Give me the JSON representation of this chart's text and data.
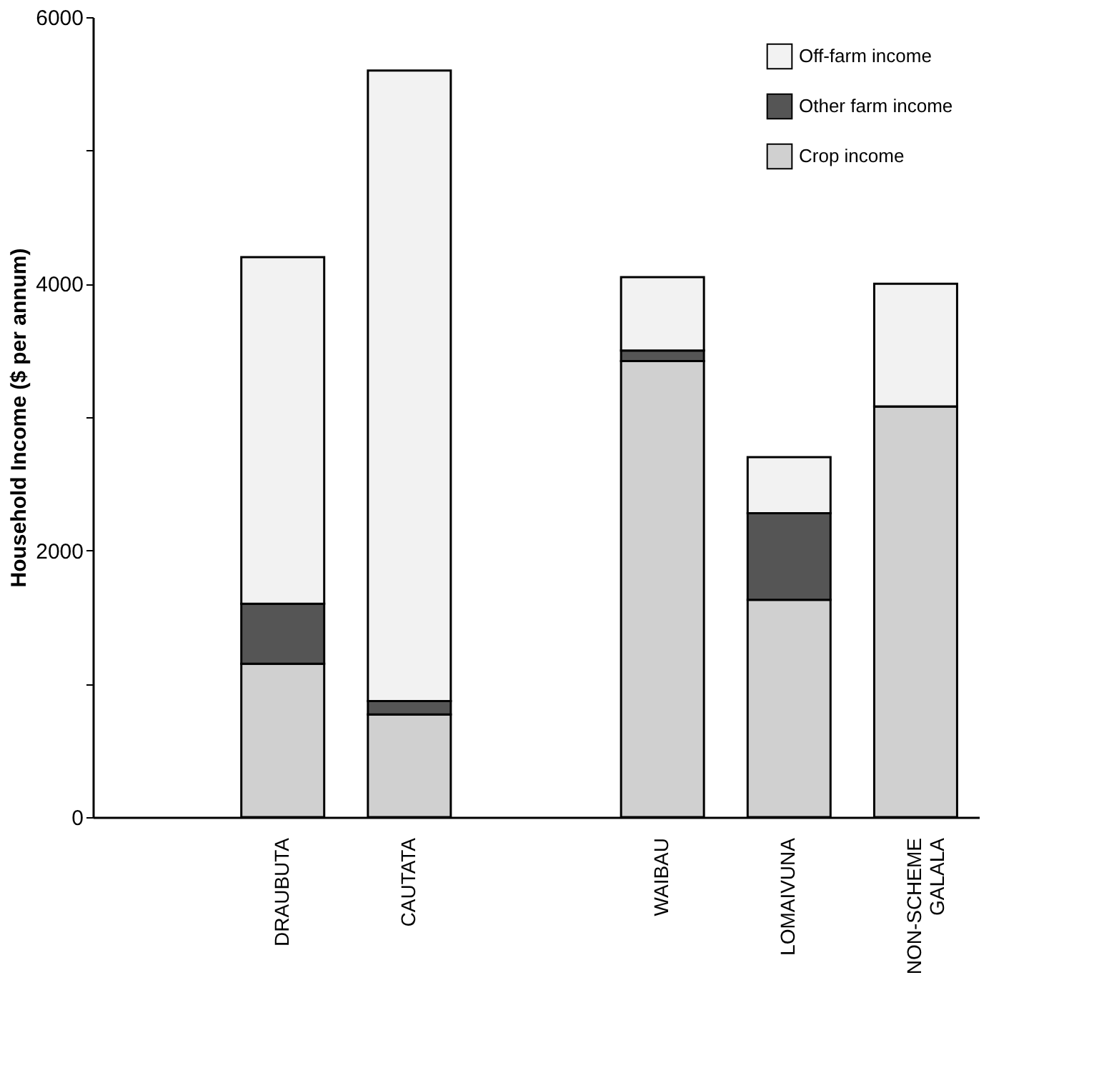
{
  "chart_data": {
    "type": "bar",
    "stacked": true,
    "ylabel": "Household Income ($ per annum)",
    "categories": [
      null,
      "DRAUBUTA",
      "CAUTATA",
      null,
      "WAIBAU",
      "LOMAIVUNA",
      "NON-SCHEME GALALA"
    ],
    "series": [
      {
        "name": "Crop income",
        "color": "#d0d0d0",
        "values": [
          null,
          1150,
          770,
          null,
          3420,
          1630,
          3080
        ]
      },
      {
        "name": "Other farm income",
        "color": "#555555",
        "values": [
          null,
          450,
          100,
          null,
          80,
          650,
          0
        ]
      },
      {
        "name": "Off-farm income",
        "color": "#f2f2f2",
        "values": [
          null,
          2600,
          4730,
          null,
          550,
          420,
          920
        ]
      }
    ],
    "ylim": [
      0,
      6000
    ],
    "yticks": [
      0,
      {
        "value": 1000,
        "label": null
      },
      2000,
      {
        "value": 3000,
        "label": null
      },
      4000,
      {
        "value": 5000,
        "label": null
      },
      6000
    ],
    "grid": false,
    "legend": "top right"
  }
}
